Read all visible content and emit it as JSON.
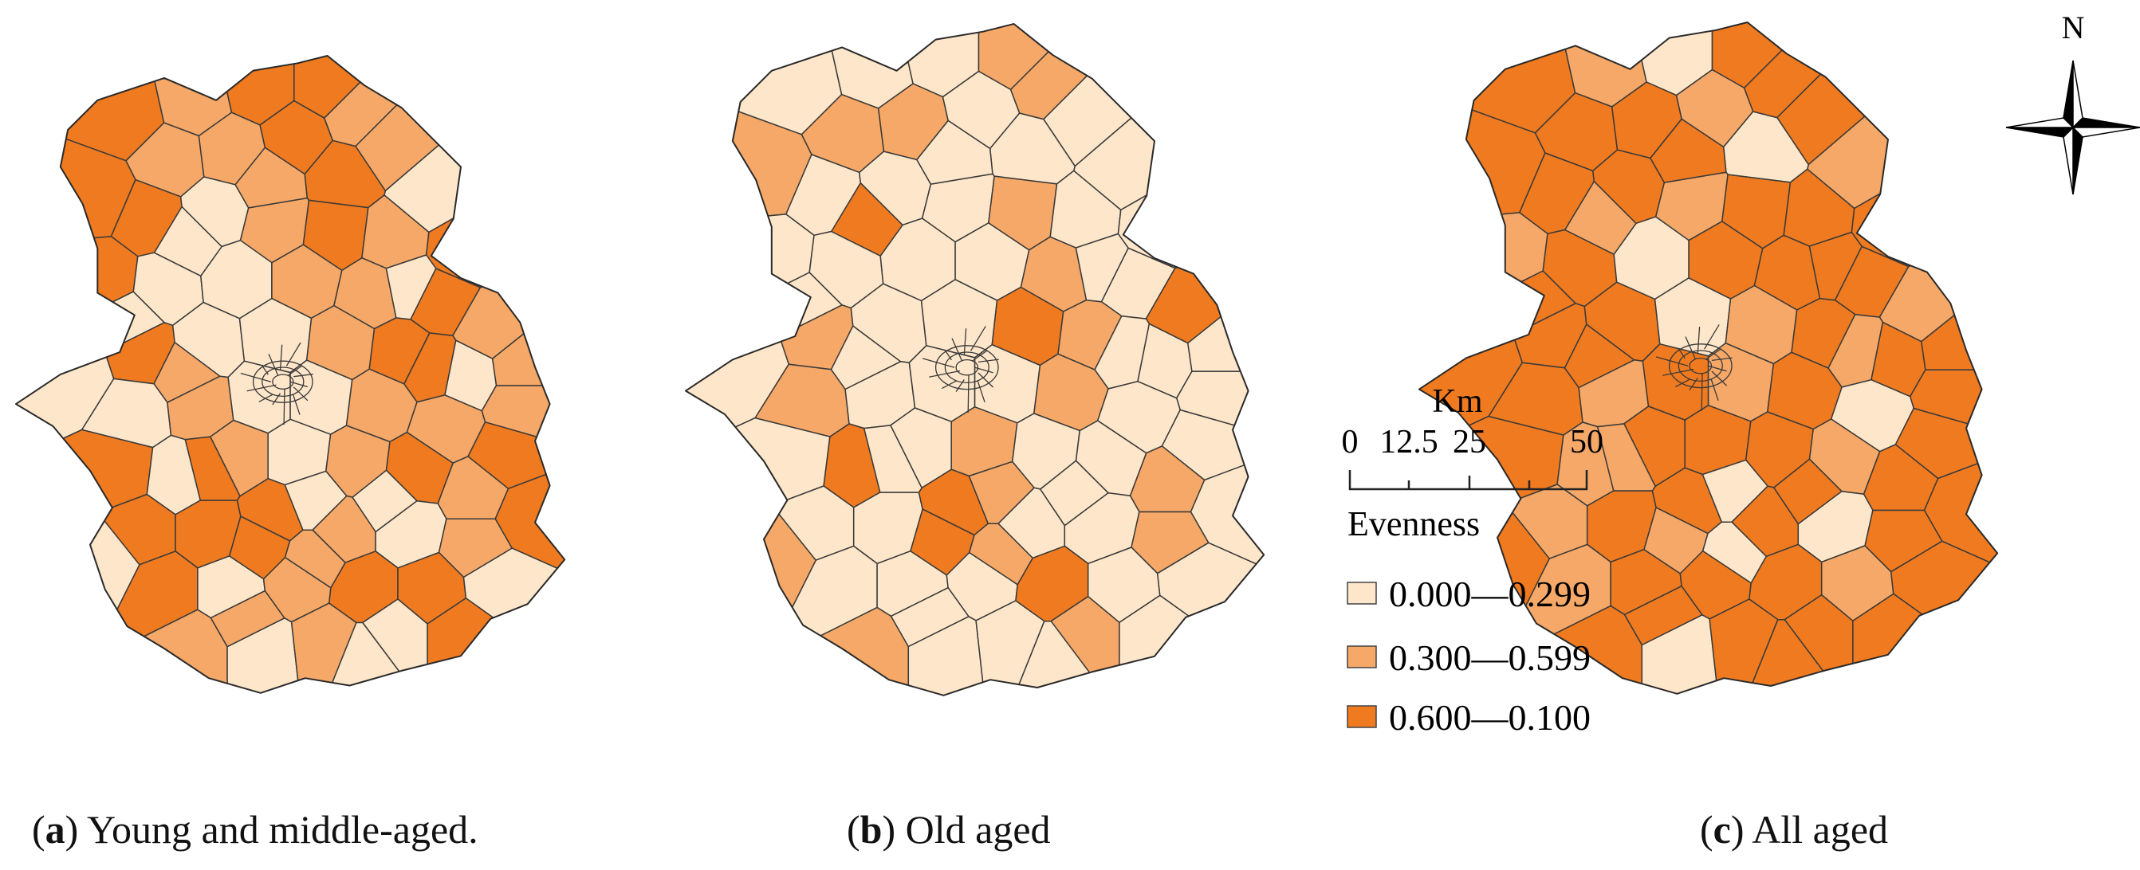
{
  "maps": [
    {
      "letter": "a",
      "caption": "Young and middle-aged."
    },
    {
      "letter": "b",
      "caption": "Old aged"
    },
    {
      "letter": "c",
      "caption": "All aged"
    }
  ],
  "scale_bar": {
    "unit": "Km",
    "ticks": [
      "0",
      "12.5",
      "25",
      "50"
    ]
  },
  "north_arrow": {
    "label": "N"
  },
  "legend": {
    "title": "Evenness",
    "classes": [
      {
        "label": "0.000—0.299",
        "color": "#fde6c9"
      },
      {
        "label": "0.300—0.599",
        "color": "#f5a867"
      },
      {
        "label": "0.600—0.100",
        "color": "#ef7a1f"
      }
    ]
  },
  "region_classes": {
    "a": [
      2,
      1,
      2,
      2,
      1,
      0,
      1,
      1,
      2,
      2,
      2,
      2,
      0,
      1,
      2,
      1,
      2,
      0,
      0,
      1,
      1,
      2,
      1,
      0,
      2,
      0,
      0,
      1,
      2,
      0,
      1,
      0,
      1,
      0,
      0,
      1,
      1,
      2,
      2,
      0,
      1,
      0,
      1,
      2,
      1,
      2,
      2,
      2,
      2,
      1,
      0,
      1,
      2,
      0,
      1,
      2,
      2,
      0,
      1,
      0,
      1,
      0,
      2,
      0,
      1,
      0,
      2,
      1,
      2,
      0,
      0,
      1,
      0,
      2,
      0,
      1,
      1,
      2,
      0,
      1
    ],
    "b": [
      0,
      0,
      0,
      1,
      0,
      0,
      1,
      1,
      0,
      0,
      1,
      0,
      0,
      0,
      1,
      0,
      0,
      0,
      0,
      0,
      1,
      0,
      2,
      0,
      1,
      0,
      0,
      2,
      1,
      0,
      0,
      1,
      0,
      0,
      0,
      1,
      0,
      0,
      0,
      2,
      0,
      1,
      0,
      0,
      1,
      0,
      0,
      0,
      2,
      0,
      0,
      1,
      0,
      0,
      0,
      2,
      0,
      0,
      1,
      0,
      0,
      1,
      0,
      2,
      1,
      0,
      0,
      0,
      0,
      0,
      1,
      0,
      0,
      0,
      1,
      0,
      0,
      2,
      0,
      1
    ],
    "c": [
      2,
      1,
      0,
      2,
      2,
      1,
      2,
      2,
      1,
      0,
      2,
      2,
      2,
      1,
      2,
      2,
      1,
      2,
      0,
      2,
      2,
      2,
      1,
      2,
      2,
      2,
      0,
      1,
      2,
      2,
      2,
      2,
      1,
      2,
      1,
      2,
      0,
      2,
      2,
      1,
      2,
      2,
      2,
      1,
      2,
      2,
      1,
      2,
      2,
      2,
      0,
      2,
      1,
      2,
      2,
      2,
      1,
      2,
      2,
      0,
      2,
      2,
      2,
      1,
      2,
      2,
      2,
      2,
      1,
      2,
      0,
      2,
      2,
      1,
      2,
      2,
      2,
      1,
      2,
      0
    ]
  }
}
